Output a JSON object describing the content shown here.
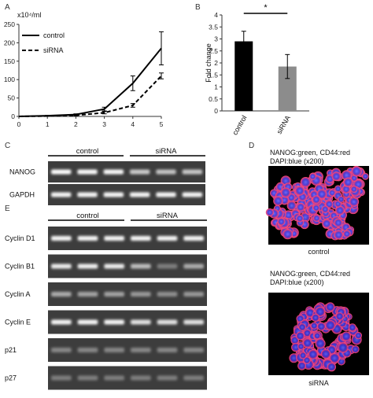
{
  "panels": {
    "a": {
      "letter": "A"
    },
    "b": {
      "letter": "B"
    },
    "c": {
      "letter": "C"
    },
    "d": {
      "letter": "D"
    },
    "e": {
      "letter": "E"
    }
  },
  "chart_data": [
    {
      "type": "line",
      "panel": "A",
      "ylabel": "x10⁴/ml",
      "x": [
        0,
        1,
        2,
        3,
        4,
        5
      ],
      "xticks": [
        "0",
        "1",
        "2",
        "3",
        "4",
        "5"
      ],
      "yticks": [
        "0",
        "50",
        "100",
        "150",
        "200",
        "250"
      ],
      "ylim": [
        0,
        250
      ],
      "grid": false,
      "legend": "top-left",
      "series": [
        {
          "name": "control",
          "style": "solid",
          "values": [
            0,
            2,
            5,
            20,
            90,
            185
          ],
          "errors": [
            0,
            1,
            2,
            5,
            20,
            45
          ]
        },
        {
          "name": "siRNA",
          "style": "dashed",
          "values": [
            0,
            1,
            3,
            10,
            30,
            110
          ],
          "errors": [
            0,
            1,
            1,
            3,
            5,
            8
          ]
        }
      ]
    },
    {
      "type": "bar",
      "panel": "B",
      "ylabel": "Fold change",
      "categories": [
        "control",
        "siRNA"
      ],
      "values": [
        2.9,
        1.85
      ],
      "errors": [
        0.42,
        0.5
      ],
      "colors": [
        "#000000",
        "#8c8c8c"
      ],
      "yticks": [
        "0",
        "0.5",
        "1",
        "1.5",
        "2",
        "2.5",
        "3",
        "3.5",
        "4"
      ],
      "ylim": [
        0,
        4
      ],
      "significance": "*"
    }
  ],
  "gel_c": {
    "group_control": "control",
    "group_sirna": "siRNA",
    "rows": [
      {
        "label": "NANOG",
        "intensity": [
          1.0,
          0.98,
          0.97,
          0.72,
          0.68,
          0.7
        ]
      },
      {
        "label": "GAPDH",
        "intensity": [
          0.95,
          0.95,
          0.95,
          0.95,
          0.95,
          0.95
        ]
      }
    ]
  },
  "gel_e": {
    "group_control": "control",
    "group_sirna": "siRNA",
    "rows": [
      {
        "label": "Cyclin D1",
        "intensity": [
          0.95,
          0.95,
          0.95,
          0.95,
          0.95,
          0.95
        ]
      },
      {
        "label": "Cyclin B1",
        "intensity": [
          0.9,
          0.92,
          0.9,
          0.65,
          0.3,
          0.55
        ]
      },
      {
        "label": "Cyclin A",
        "intensity": [
          0.55,
          0.5,
          0.5,
          0.45,
          0.4,
          0.45
        ]
      },
      {
        "label": "Cyclin E",
        "intensity": [
          0.95,
          0.95,
          0.95,
          0.85,
          0.85,
          0.85
        ]
      },
      {
        "label": "p21",
        "intensity": [
          0.35,
          0.35,
          0.35,
          0.35,
          0.35,
          0.35
        ]
      },
      {
        "label": "p27",
        "intensity": [
          0.3,
          0.3,
          0.3,
          0.3,
          0.3,
          0.3
        ]
      }
    ]
  },
  "micro_d": {
    "top_line1": "NANOG:green, CD44:red",
    "top_line2": "DAPI:blue (x200)",
    "top_caption": "control",
    "bottom_line1": "NANOG:green, CD44:red",
    "bottom_line2": "DAPI:blue (x200)",
    "bottom_caption": "siRNA"
  }
}
